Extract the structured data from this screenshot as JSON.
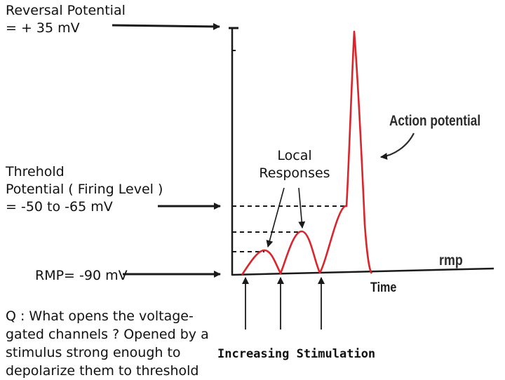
{
  "labels": {
    "reversal_potential": "Reversal Potential\n= + 35 mV",
    "threshold_potential": "Threhold\n Potential ( Firing Level )\n = -50 to -65 mV",
    "rmp_left": "RMP= -90 mV",
    "question": "Q : What opens the voltage-\ngated channels ? Opened by a\nstimulus strong enough to\ndepolarize them to threshold",
    "local_responses": "Local\nResponses",
    "action_potential": "Action potential",
    "rmp_right": "rmp",
    "time_axis": "Time",
    "increasing_stimulation": "Increasing Stimulation"
  },
  "colors": {
    "trace": "#d9252b",
    "axis": "#1a1a1a",
    "text": "#111111"
  }
}
